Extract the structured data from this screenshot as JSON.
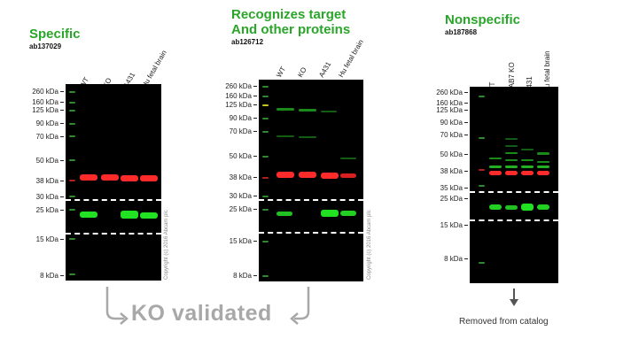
{
  "panels": [
    {
      "title": "Specific",
      "catalog": "ab137029",
      "lanes": [
        "WT",
        "KO",
        "A431",
        "Hu fetal brain"
      ],
      "markers": [
        "260 kDa",
        "160 kDa",
        "125 kDa",
        "90 kDa",
        "70 kDa",
        "50 kDa",
        "38 kDa",
        "30 kDa",
        "25 kDa",
        "15 kDa",
        "8 kDa"
      ],
      "copyright": "Copyright (c) 2016 Abcam plc"
    },
    {
      "title_line1": "Recognizes target",
      "title_line2": "And other proteins",
      "catalog": "ab126712",
      "lanes": [
        "WT",
        "KO",
        "A431",
        "Hu fetal brain"
      ],
      "markers": [
        "260 kDa",
        "160 kDa",
        "125 kDa",
        "90 kDa",
        "70 kDa",
        "50 kDa",
        "38 kDa",
        "30 kDa",
        "25 kDa",
        "15 kDa",
        "8 kDa"
      ],
      "copyright": "Copyright (c) 2016 Abcam plc"
    },
    {
      "title": "Nonspecific",
      "catalog": "ab187868",
      "lanes": [
        "WT",
        "RAB7 KO",
        "A431",
        "Hu fetal brain"
      ],
      "markers": [
        "260 kDa",
        "160 kDa",
        "125 kDa",
        "90 kDa",
        "70 kDa",
        "50 kDa",
        "38 kDa",
        "35 kDa",
        "25 kDa",
        "15 kDa",
        "8 kDa"
      ]
    }
  ],
  "validated_label": "KO validated",
  "removed_label": "Removed from catalog",
  "colors": {
    "heading": "#2aa52a",
    "red_band": "#ff2a2a",
    "green_band": "#22e022",
    "arrow": "#a8a8a8"
  }
}
